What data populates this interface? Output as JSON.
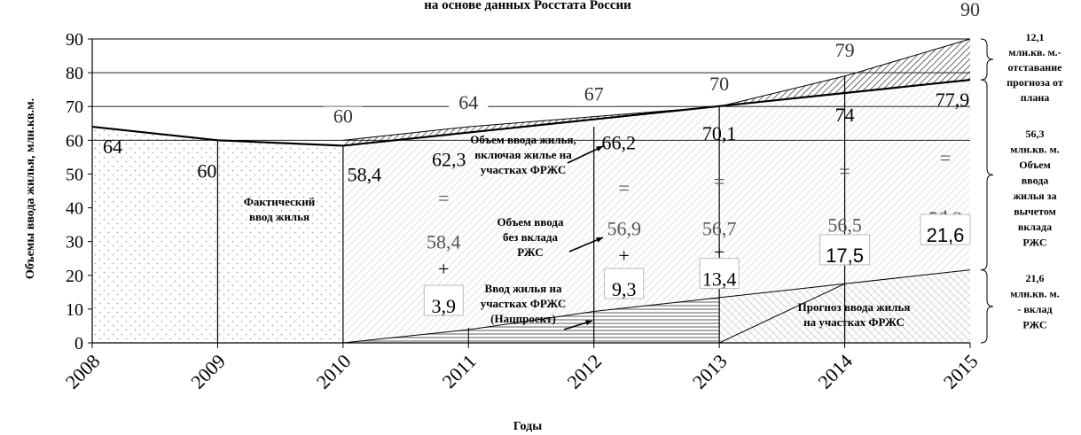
{
  "chart_data": {
    "type": "area",
    "title": "на основе данных Росстата России",
    "xlabel": "Годы",
    "ylabel": "Объемы ввода жилья, млн.кв.м.",
    "ylim": [
      0,
      90
    ],
    "yticks": [
      "0",
      "10",
      "20",
      "30",
      "40",
      "50",
      "60",
      "70",
      "80",
      "90"
    ],
    "categories": [
      "2008",
      "2009",
      "2010",
      "2011",
      "2012",
      "2013",
      "2014",
      "2015"
    ],
    "grid": "horizontal at 60, 70 and 80 only",
    "series": [
      {
        "values": [
          64,
          60,
          58.4,
          62.3,
          66.2,
          70.1,
          74,
          77.9
        ]
      },
      {
        "values": [
          64,
          60,
          60,
          64,
          67,
          70,
          79,
          90
        ]
      },
      {
        "values": [
          null,
          null,
          58.4,
          58.4,
          56.9,
          56.7,
          56.5,
          56.3
        ]
      },
      {
        "values": [
          null,
          null,
          0,
          3.9,
          9.3,
          13.4,
          17.5,
          21.6
        ]
      }
    ],
    "plan_labels": [
      {
        "x": "2010",
        "value": 60,
        "text": "60"
      },
      {
        "x": "2011",
        "value": 64,
        "text": "64"
      },
      {
        "x": "2012",
        "value": 67,
        "text": "67"
      },
      {
        "x": "2013",
        "value": 70,
        "text": "70"
      },
      {
        "x": "2014",
        "value": 79,
        "text": "79"
      },
      {
        "x": "2015",
        "value": 90,
        "text": "90"
      }
    ],
    "total_labels": [
      "64",
      "60",
      "58,4",
      "62,3",
      "66,2",
      "70,1",
      "74",
      "77,9"
    ],
    "eq_signs": [
      "=",
      "=",
      "=",
      "=",
      "="
    ],
    "plus_signs": [
      "+",
      "+",
      "+",
      "+",
      "+"
    ],
    "nofrzhs_labels": [
      "58,4",
      "56,9",
      "56,7",
      "56,5",
      "56,3"
    ],
    "frzhs_labels": [
      "3,9",
      "9,3",
      "13,4",
      "17,5",
      "21,6"
    ],
    "annotations": [
      {
        "lines": [
          "Фактический",
          "ввод жилья"
        ]
      },
      {
        "lines": [
          "Объем ввода жилья,",
          "включая жилье на",
          "участках ФРЖС"
        ]
      },
      {
        "lines": [
          "Объем ввода",
          "без вклада",
          "РЖС"
        ]
      },
      {
        "lines": [
          "Ввод жилья на",
          "участках ФРЖС",
          "(Нацпроект)"
        ]
      },
      {
        "lines": [
          "Прогноз ввода жилья",
          "на участках ФРЖС"
        ]
      }
    ],
    "brace_labels": [
      {
        "range": [
          77.9,
          90
        ],
        "lines": [
          "12,1",
          "млн.кв. м.-",
          "отставание",
          "прогноза от",
          "плана"
        ]
      },
      {
        "range": [
          21.6,
          77.9
        ],
        "lines": [
          "56,3",
          "млн.кв. м.",
          "Объем",
          "ввода",
          "жилья за",
          "вычетом",
          "вклада",
          "РЖС"
        ]
      },
      {
        "range": [
          0,
          21.6
        ],
        "lines": [
          "21,6",
          "млн.кв. м.",
          "- вклад",
          "РЖС"
        ]
      }
    ]
  }
}
